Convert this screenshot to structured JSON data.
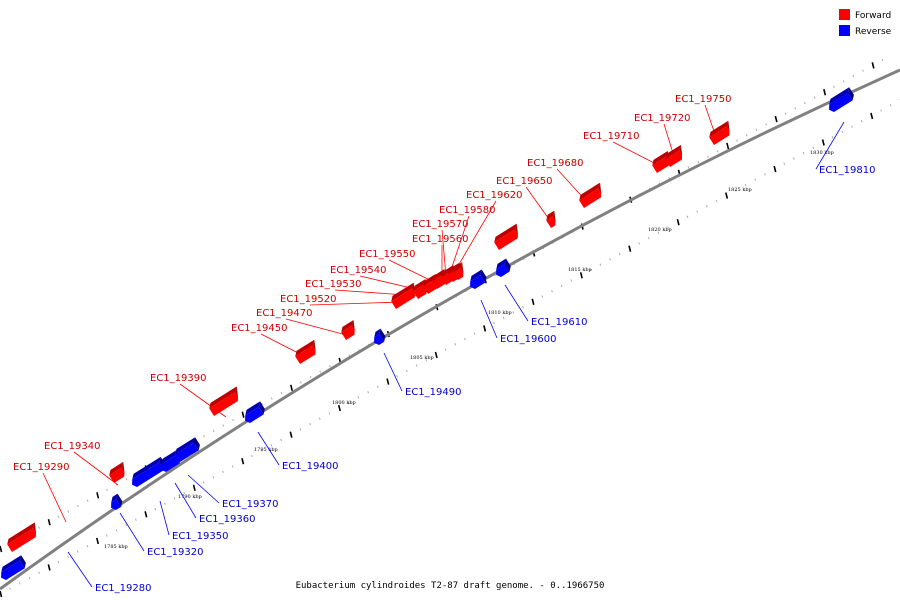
{
  "colors": {
    "forward": "#ff0000",
    "reverse": "#0000ff",
    "backbone": "#808080",
    "forward_label": "#cc0000",
    "reverse_label": "#0000cc"
  },
  "legend": {
    "forward": "Forward",
    "reverse": "Reverse"
  },
  "caption": "Eubacterium cylindroides T2-87 draft genome. - 0..1966750",
  "scale_labels": [
    "1785 kbp",
    "1790 kbp",
    "1795 kbp",
    "1800 kbp",
    "1805 kbp",
    "1810 kbp",
    "1815 kbp",
    "1820 kbp",
    "1825 kbp",
    "1830 kbp"
  ],
  "forward_genes": [
    "EC1_19290",
    "EC1_19340",
    "EC1_19390",
    "EC1_19450",
    "EC1_19470",
    "EC1_19520",
    "EC1_19530",
    "EC1_19540",
    "EC1_19550",
    "EC1_19560",
    "EC1_19570",
    "EC1_19580",
    "EC1_19620",
    "EC1_19650",
    "EC1_19680",
    "EC1_19710",
    "EC1_19720",
    "EC1_19750"
  ],
  "reverse_genes": [
    "EC1_19280",
    "EC1_19320",
    "EC1_19350",
    "EC1_19360",
    "EC1_19370",
    "EC1_19400",
    "EC1_19490",
    "EC1_19600",
    "EC1_19610",
    "EC1_19810"
  ]
}
